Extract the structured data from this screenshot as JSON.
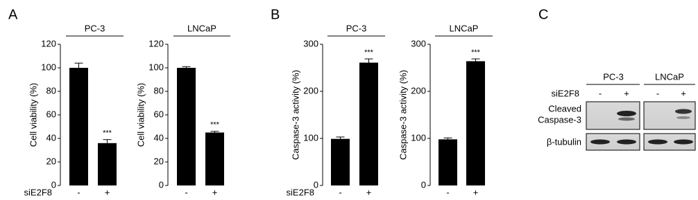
{
  "panel_labels": [
    "A",
    "B",
    "C"
  ],
  "chart_data": [
    {
      "type": "bar",
      "title": "PC-3",
      "y_label": "Cell viability (%)",
      "x_label": "siE2F8",
      "categories": [
        "-",
        "+"
      ],
      "values": [
        100,
        36
      ],
      "errors": [
        4,
        3
      ],
      "value_annotations": [
        null,
        "***"
      ],
      "color": "#000000",
      "ylim": [
        0,
        120
      ],
      "yticks": [
        0,
        20,
        40,
        60,
        80,
        100,
        120
      ]
    },
    {
      "type": "bar",
      "title": "LNCaP",
      "y_label": "Cell viability (%)",
      "categories": [
        "-",
        "+"
      ],
      "values": [
        100,
        45
      ],
      "errors": [
        1,
        1
      ],
      "value_annotations": [
        null,
        "***"
      ],
      "color": "#000000",
      "ylim": [
        0,
        120
      ],
      "yticks": [
        0,
        20,
        40,
        60,
        80,
        100,
        120
      ]
    },
    {
      "type": "bar",
      "title": "PC-3",
      "y_label": "Caspase-3 activity (%)",
      "x_label": "siE2F8",
      "categories": [
        "-",
        "+"
      ],
      "values": [
        99,
        261
      ],
      "errors": [
        4,
        8
      ],
      "value_annotations": [
        null,
        "***"
      ],
      "color": "#000000",
      "ylim": [
        0,
        300
      ],
      "yticks": [
        0,
        100,
        200,
        300
      ]
    },
    {
      "type": "bar",
      "title": "LNCaP",
      "y_label": "Caspase-3 activity (%)",
      "categories": [
        "-",
        "+"
      ],
      "values": [
        98,
        264
      ],
      "errors": [
        3,
        5
      ],
      "value_annotations": [
        null,
        "***"
      ],
      "color": "#000000",
      "ylim": [
        0,
        300
      ],
      "yticks": [
        0,
        100,
        200,
        300
      ]
    }
  ],
  "blot": {
    "groups": [
      "PC-3",
      "LNCaP"
    ],
    "treatment_label": "siE2F8",
    "lanes": [
      "-",
      "+",
      "-",
      "+"
    ],
    "row_labels": [
      [
        "Cleaved",
        "Caspase-3"
      ],
      [
        "β-tubulin"
      ]
    ]
  }
}
